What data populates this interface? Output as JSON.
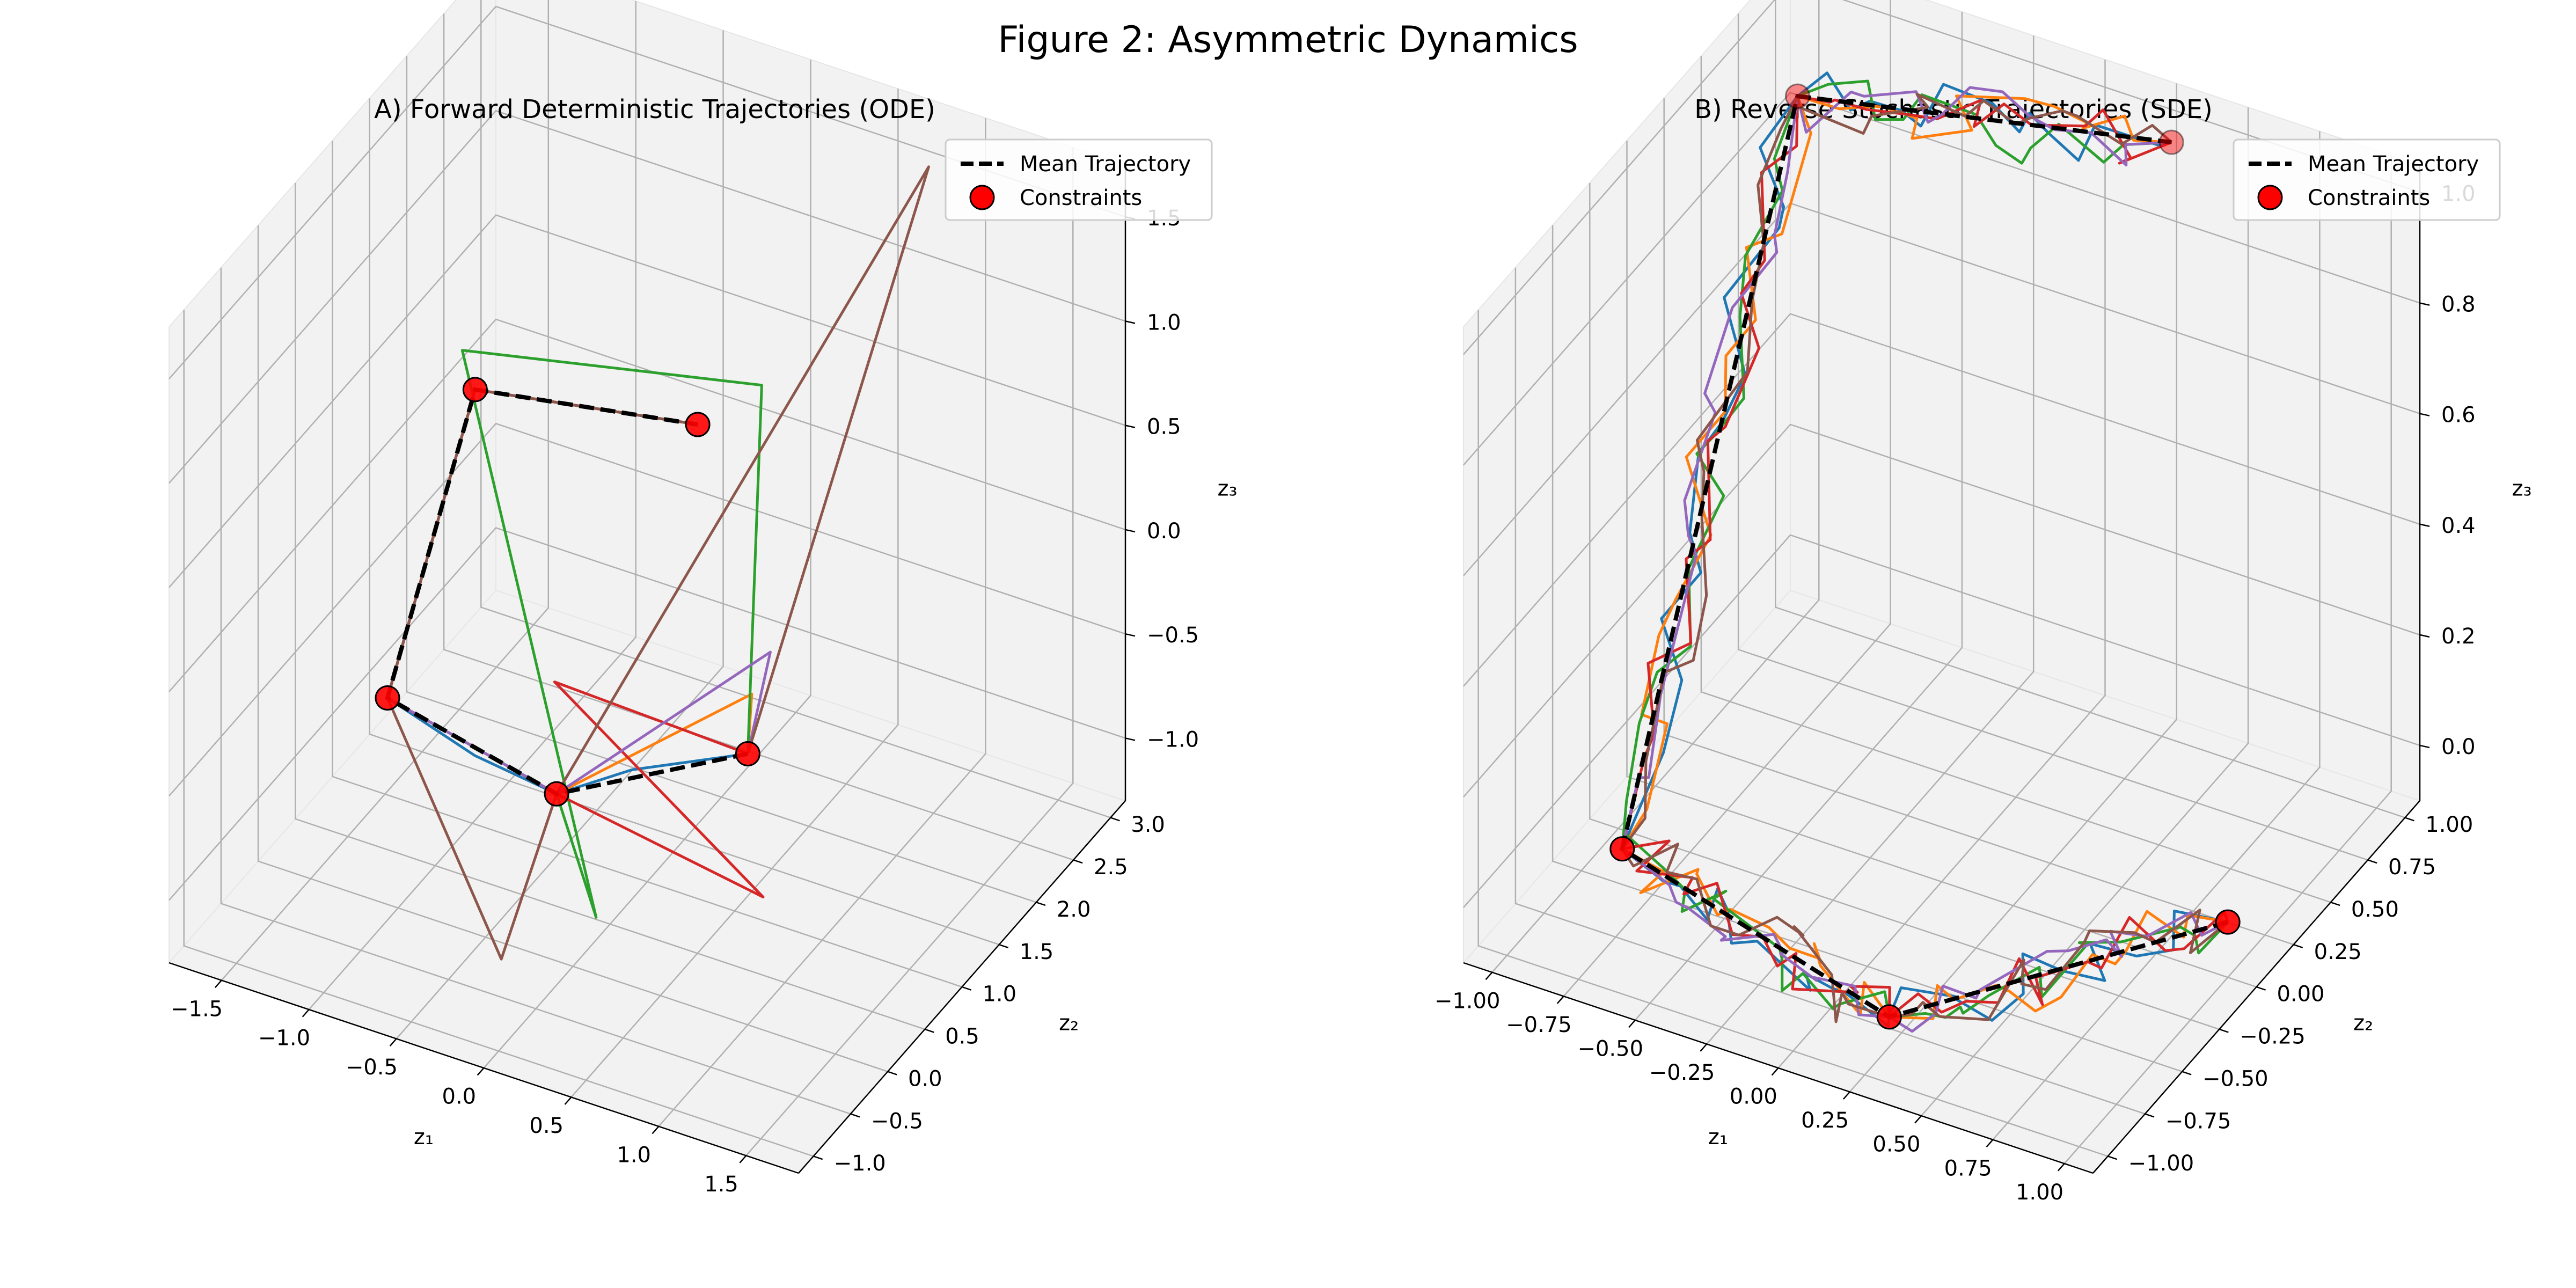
{
  "figure_title": "Figure 2: Asymmetric Dynamics",
  "series_colors": [
    "#1f77b4",
    "#ff7f0e",
    "#2ca02c",
    "#d62728",
    "#9467bd",
    "#8c564b"
  ],
  "mean_color": "#000000",
  "constraint_color": "#ff0000",
  "chart_data": [
    {
      "type": "line3d",
      "title": "A) Forward Deterministic Trajectories (ODE)",
      "xlabel": "z₁",
      "ylabel": "z₂",
      "zlabel": "z₃",
      "xlim": [
        -1.8,
        1.8
      ],
      "ylim": [
        -1.2,
        3.2
      ],
      "zlim": [
        -1.3,
        1.75
      ],
      "xticks": [
        "−1.5",
        "−1.0",
        "−0.5",
        "0.0",
        "0.5",
        "1.0",
        "1.5"
      ],
      "yticks": [
        "−1.0",
        "−0.5",
        "0.0",
        "0.5",
        "1.0",
        "1.5",
        "2.0",
        "2.5",
        "3.0"
      ],
      "zticks": [
        "−1.0",
        "−0.5",
        "0.0",
        "0.5",
        "1.0",
        "1.5"
      ],
      "grid": true,
      "legend": {
        "placement": "upper right",
        "entries": [
          "Mean Trajectory",
          "Constraints"
        ]
      },
      "constraints": [
        [
          1.0,
          0.0,
          0.0
        ],
        [
          0.31,
          -0.95,
          0.0
        ],
        [
          -0.81,
          -0.59,
          0.0
        ],
        [
          -0.81,
          0.59,
          1.0
        ],
        [
          0.31,
          0.95,
          1.0
        ]
      ],
      "mean_trajectory": [
        [
          1.0,
          0.0,
          0.0
        ],
        [
          0.31,
          -0.95,
          0.0
        ],
        [
          -0.81,
          -0.59,
          0.0
        ],
        [
          -0.81,
          0.59,
          1.0
        ],
        [
          0.31,
          0.95,
          1.0
        ]
      ],
      "samples": [
        [
          [
            1.0,
            0.0,
            0.0
          ],
          [
            0.55,
            -0.5,
            0.0
          ],
          [
            0.31,
            -0.95,
            0.0
          ],
          [
            -0.2,
            -0.85,
            0.0
          ],
          [
            -0.81,
            -0.59,
            0.0
          ],
          [
            -0.81,
            0.59,
            1.0
          ],
          [
            0.31,
            0.95,
            1.0
          ]
        ],
        [
          [
            1.0,
            0.0,
            0.0
          ],
          [
            1.15,
            -0.3,
            0.45
          ],
          [
            0.31,
            -0.95,
            0.0
          ],
          [
            -0.81,
            -0.59,
            0.0
          ],
          [
            -0.81,
            0.59,
            1.0
          ],
          [
            0.31,
            0.95,
            1.0
          ]
        ],
        [
          [
            1.0,
            0.0,
            0.0
          ],
          [
            0.4,
            1.6,
            0.95
          ],
          [
            -1.1,
            1.1,
            0.9
          ],
          [
            0.6,
            -1.1,
            -0.45
          ],
          [
            0.31,
            -0.95,
            0.0
          ],
          [
            -0.81,
            -0.59,
            0.0
          ],
          [
            -0.81,
            0.59,
            1.0
          ],
          [
            0.31,
            0.95,
            1.0
          ]
        ],
        [
          [
            1.0,
            0.0,
            0.0
          ],
          [
            0.15,
            -0.6,
            0.35
          ],
          [
            1.3,
            -0.5,
            -0.4
          ],
          [
            0.31,
            -0.95,
            0.0
          ],
          [
            -0.81,
            -0.59,
            0.0
          ],
          [
            -0.81,
            0.59,
            1.0
          ],
          [
            0.31,
            0.95,
            1.0
          ]
        ],
        [
          [
            1.0,
            0.0,
            0.0
          ],
          [
            1.15,
            -0.05,
            0.55
          ],
          [
            0.31,
            -0.95,
            0.0
          ],
          [
            -0.81,
            -0.59,
            0.0
          ],
          [
            -0.81,
            0.59,
            1.0
          ],
          [
            0.31,
            0.95,
            1.0
          ]
        ],
        [
          [
            1.0,
            0.0,
            0.0
          ],
          [
            1.1,
            2.2,
            1.95
          ],
          [
            0.31,
            -0.95,
            0.0
          ],
          [
            0.1,
            -1.2,
            -0.75
          ],
          [
            -0.81,
            -0.59,
            0.0
          ],
          [
            -0.81,
            0.59,
            1.0
          ],
          [
            0.31,
            0.95,
            1.0
          ]
        ]
      ]
    },
    {
      "type": "line3d",
      "title": "B) Reverse Stochastic Trajectories (SDE)",
      "xlabel": "z₁",
      "ylabel": "z₂",
      "zlabel": "z₃",
      "xlim": [
        -1.1,
        1.1
      ],
      "ylim": [
        -1.1,
        1.1
      ],
      "zlim": [
        -0.1,
        1.05
      ],
      "xticks": [
        "−1.00",
        "−0.75",
        "−0.50",
        "−0.25",
        "0.00",
        "0.25",
        "0.50",
        "0.75",
        "1.00"
      ],
      "yticks": [
        "−1.00",
        "−0.75",
        "−0.50",
        "−0.25",
        "0.00",
        "0.25",
        "0.50",
        "0.75",
        "1.00"
      ],
      "zticks": [
        "0.0",
        "0.2",
        "0.4",
        "0.6",
        "0.8",
        "1.0"
      ],
      "grid": true,
      "legend": {
        "placement": "upper right",
        "entries": [
          "Mean Trajectory",
          "Constraints"
        ]
      },
      "constraints": [
        [
          1.0,
          0.0,
          0.0
        ],
        [
          0.31,
          -0.95,
          0.0
        ],
        [
          -0.81,
          -0.59,
          0.0
        ],
        [
          -0.81,
          0.59,
          1.0
        ],
        [
          0.31,
          0.95,
          1.0
        ]
      ],
      "mean_trajectory": [
        [
          1.0,
          0.0,
          0.0
        ],
        [
          0.31,
          -0.95,
          0.0
        ],
        [
          -0.81,
          -0.59,
          0.0
        ],
        [
          -0.81,
          0.59,
          1.0
        ],
        [
          0.31,
          0.95,
          1.0
        ]
      ],
      "noise_amplitude": 0.07,
      "noise_steps_per_segment": 14,
      "n_samples": 6
    }
  ]
}
